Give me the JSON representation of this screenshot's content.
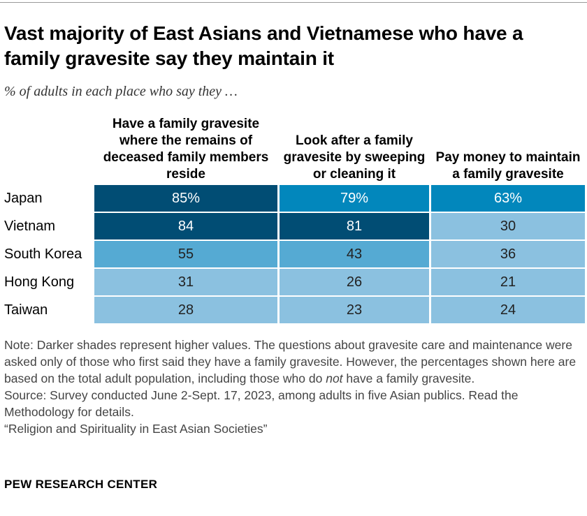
{
  "title": "Vast majority of East Asians and Vietnamese who have a family gravesite say they maintain it",
  "subtitle": "% of adults in each place who say they …",
  "chart_data": {
    "type": "heatmap",
    "columns": [
      "Have a family gravesite where the remains of deceased family members reside",
      "Look after a family gravesite by sweeping or cleaning it",
      "Pay money to maintain a family gravesite"
    ],
    "rows": [
      "Japan",
      "Vietnam",
      "South Korea",
      "Hong Kong",
      "Taiwan"
    ],
    "values": [
      [
        85,
        79,
        63
      ],
      [
        84,
        81,
        30
      ],
      [
        55,
        43,
        36
      ],
      [
        31,
        26,
        21
      ],
      [
        28,
        23,
        24
      ]
    ],
    "first_row_suffix": "%",
    "colors": {
      "80+": "#014d74",
      "60-79": "#0287bc",
      "40-59": "#55aad3",
      "below-40": "#8bc1e0"
    }
  },
  "note": {
    "prefix": "Note: Darker shades represent higher values. The questions about gravesite care and maintenance were asked only of those who first said they have a family gravesite. However, the percentages shown here are based on the total adult population, including those who ",
    "italic": "not",
    "pre_italic": "do ",
    "suffix": " have a family gravesite.",
    "source": "Source: Survey conducted June 2-Sept. 17, 2023, among adults in five Asian publics. Read the Methodology for details.",
    "report": "“Religion and Spirituality in East Asian Societies”"
  },
  "brand": "PEW RESEARCH CENTER"
}
